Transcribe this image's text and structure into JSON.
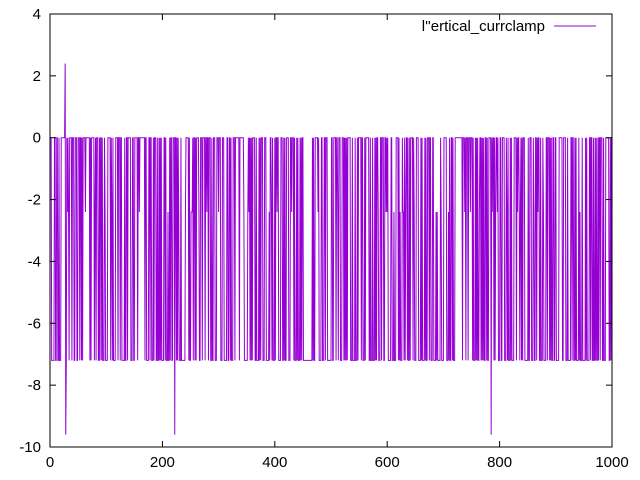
{
  "chart_data": {
    "type": "line",
    "title": "",
    "xlabel": "",
    "ylabel": "",
    "xlim": [
      0,
      1000
    ],
    "ylim": [
      -10,
      4
    ],
    "x_ticks": [
      0,
      200,
      400,
      600,
      800,
      1000
    ],
    "y_ticks": [
      -10,
      -8,
      -6,
      -4,
      -2,
      0,
      2,
      4
    ],
    "grid": false,
    "legend_position": "top-right",
    "series": [
      {
        "name": "l''ertical_currclamp",
        "color": "#9400d3",
        "pattern": "square-wave oscillation between 0 and -7.2 across the whole range, with occasional intermediate steps at -2.4",
        "levels": {
          "high": 0,
          "low": -7.2,
          "mid": -2.4
        },
        "spikes": [
          {
            "x": 27,
            "y": 2.4
          },
          {
            "x": 28,
            "y": -9.6
          },
          {
            "x": 222,
            "y": -9.6
          },
          {
            "x": 785,
            "y": -9.6
          }
        ]
      }
    ]
  }
}
